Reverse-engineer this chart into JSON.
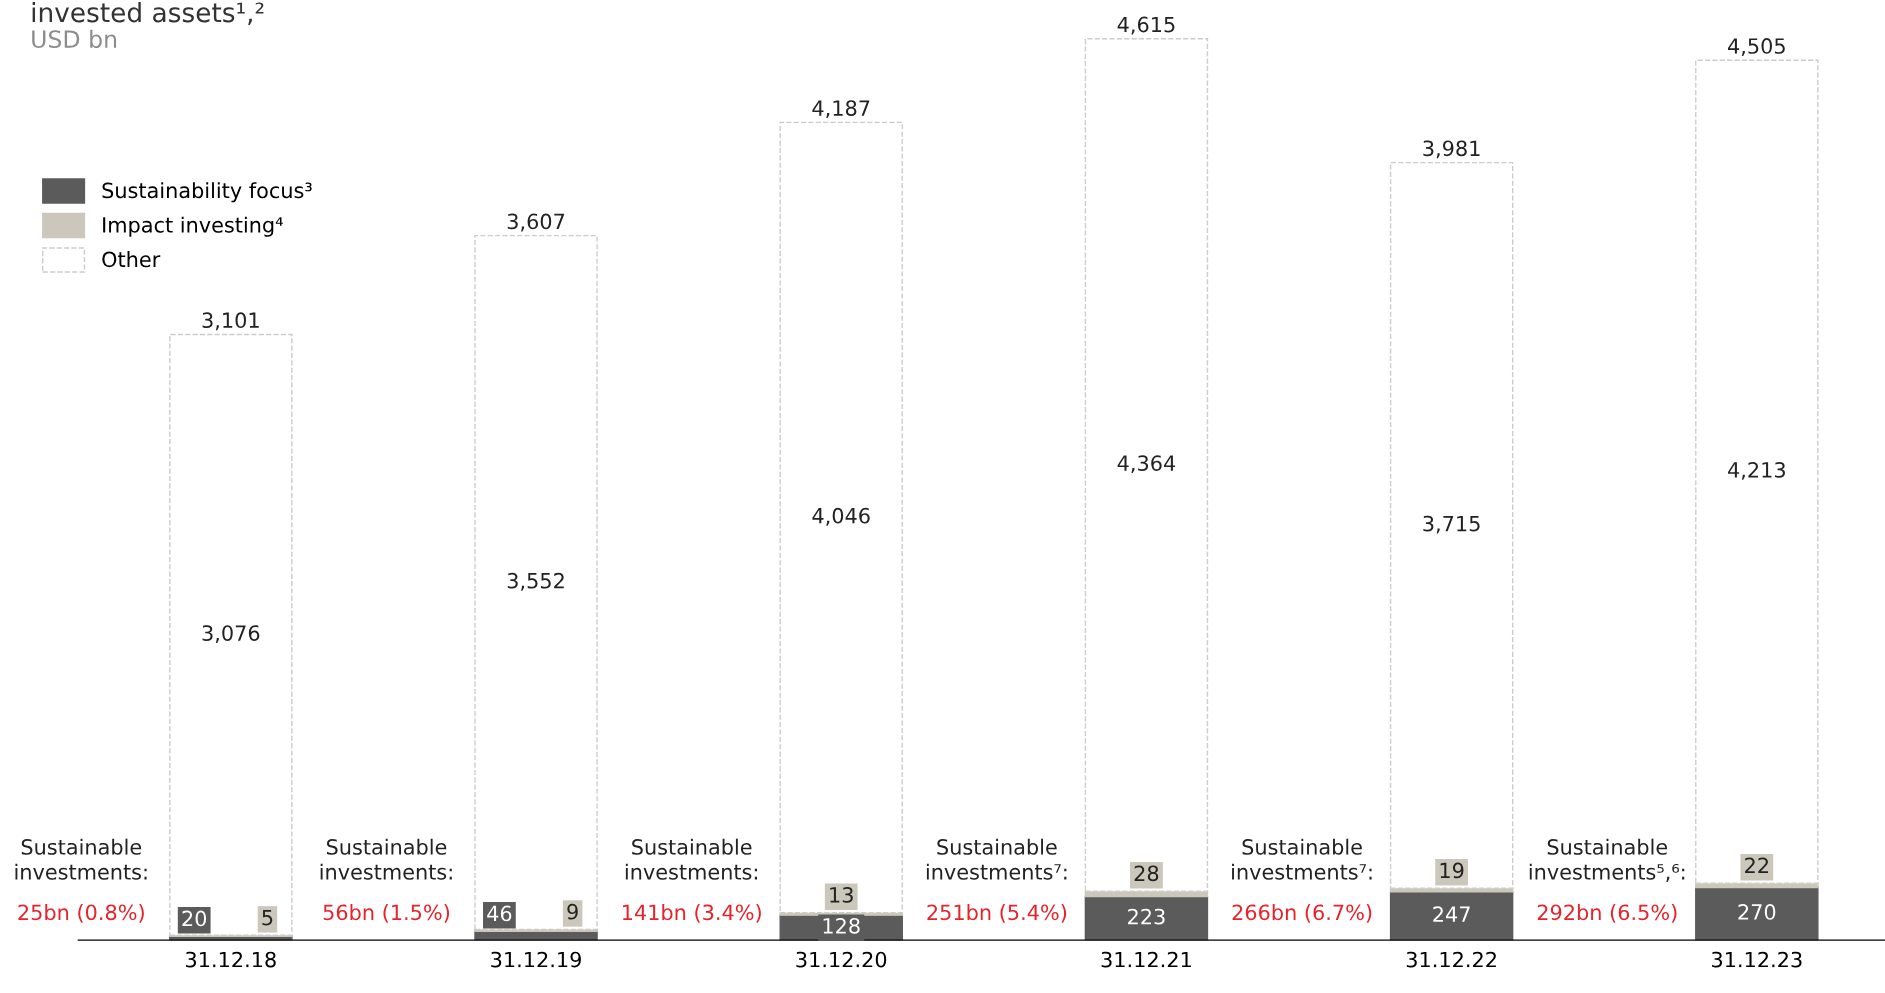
{
  "chart_data": {
    "type": "bar",
    "stacked": true,
    "title": "invested assets¹,²",
    "subtitle": "USD bn",
    "categories": [
      "31.12.18",
      "31.12.19",
      "31.12.20",
      "31.12.21",
      "31.12.22",
      "31.12.23"
    ],
    "series": [
      {
        "name": "Sustainability focus³",
        "color": "#5b5b5b",
        "values": [
          20,
          46,
          128,
          223,
          247,
          270
        ]
      },
      {
        "name": "Impact investing⁴",
        "color": "#cbc8bb",
        "values": [
          5,
          9,
          13,
          28,
          19,
          22
        ]
      },
      {
        "name": "Other",
        "color": "#ffffff",
        "values": [
          3076,
          3552,
          4046,
          4364,
          3715,
          4213
        ],
        "value_labels": [
          "3,076",
          "3,552",
          "4,046",
          "4,364",
          "3,715",
          "4,213"
        ]
      }
    ],
    "totals": [
      "3,101",
      "3,607",
      "4,187",
      "4,615",
      "3,981",
      "4,505"
    ],
    "data_labels": true,
    "legend": "top left",
    "grid": false,
    "annotations": [
      "Sustainable\ninvestments:",
      "25bn (0.8%)",
      "Sustainable\ninvestments:",
      "56bn (1.5%)",
      "Sustainable\ninvestments:",
      "141bn (3.4%)",
      "Sustainable\ninvestments⁷:",
      "251bn (5.4%)",
      "Sustainable\ninvestments⁷:",
      "266bn (6.7%)",
      "Sustainable\ninvestments⁵,⁶:",
      "292bn (6.5%)"
    ]
  }
}
